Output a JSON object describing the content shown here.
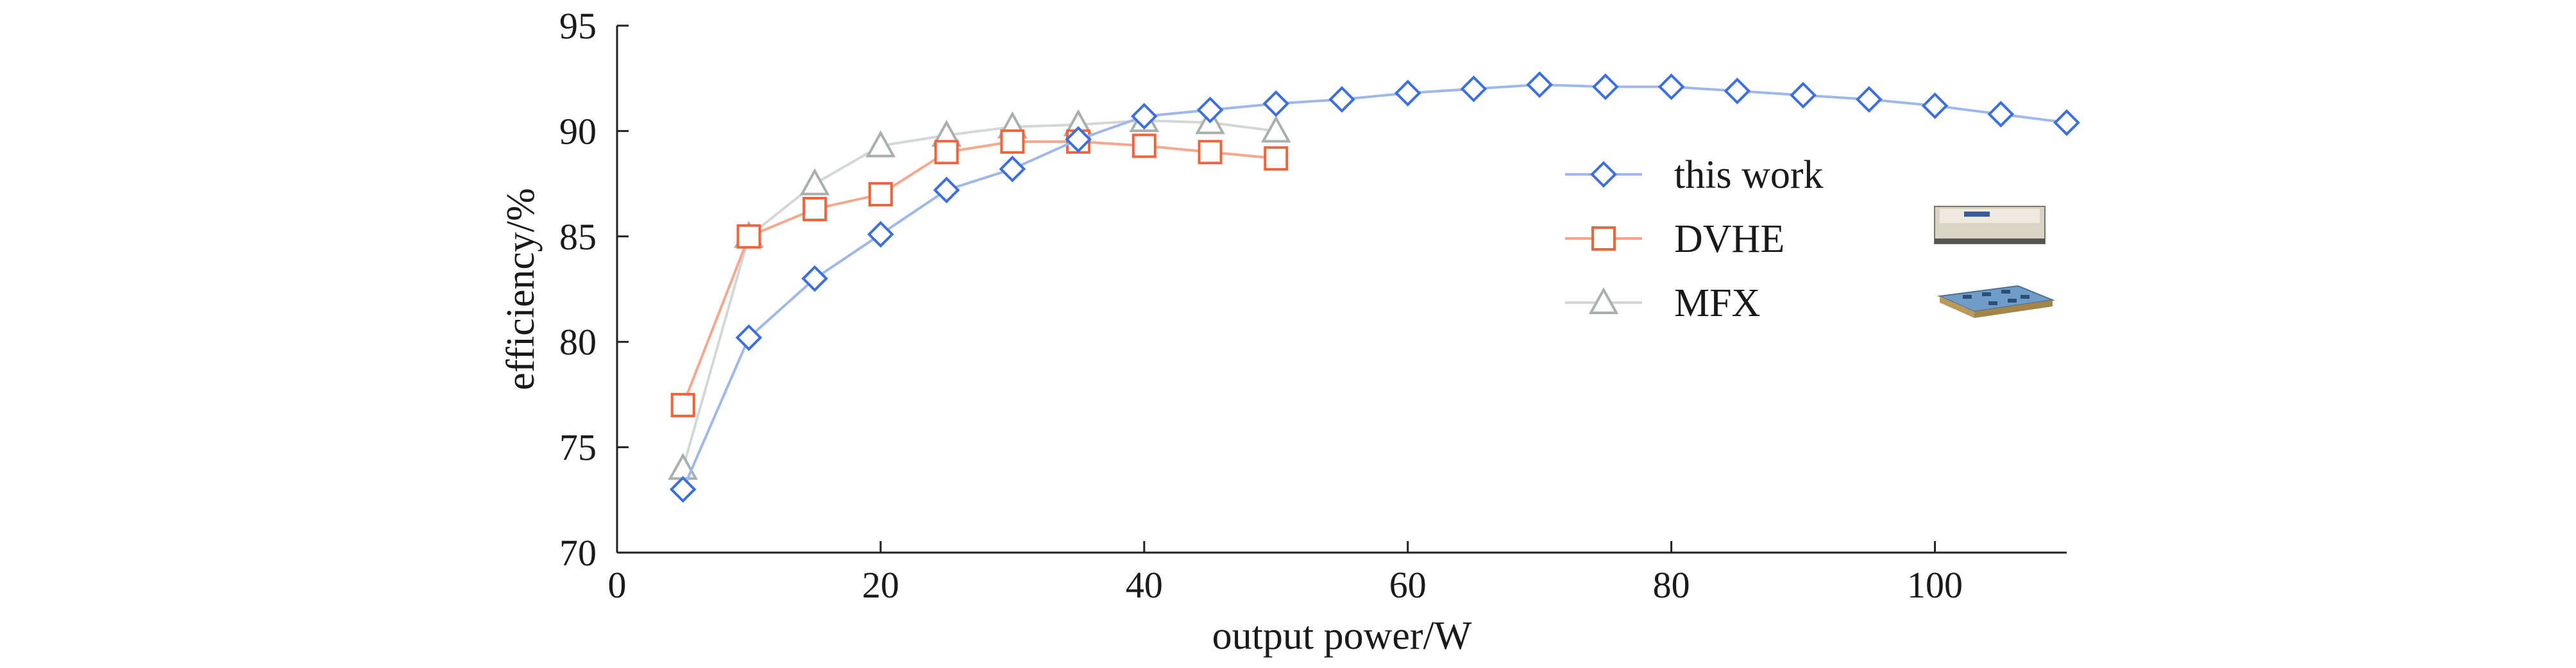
{
  "chart_data": {
    "type": "line",
    "title": "",
    "xlabel": "output power/W",
    "ylabel": "efficiency/%",
    "xlim": [
      0,
      110
    ],
    "ylim": [
      70,
      95
    ],
    "xticks": [
      0,
      20,
      40,
      60,
      80,
      100
    ],
    "yticks": [
      70,
      75,
      80,
      85,
      90,
      95
    ],
    "grid": false,
    "legend_position": "right",
    "series": [
      {
        "name": "this work",
        "marker": "diamond",
        "color": "#3b6fe0",
        "line_color": "#9fb8ec",
        "x": [
          5,
          10,
          15,
          20,
          25,
          30,
          35,
          40,
          45,
          50,
          55,
          60,
          65,
          70,
          75,
          80,
          85,
          90,
          95,
          100,
          105,
          110
        ],
        "y": [
          73.0,
          80.2,
          83.0,
          85.1,
          87.2,
          88.2,
          89.6,
          90.7,
          91.0,
          91.3,
          91.5,
          91.8,
          92.0,
          92.2,
          92.1,
          92.1,
          91.9,
          91.7,
          91.5,
          91.2,
          90.8,
          90.4
        ]
      },
      {
        "name": "DVHE",
        "marker": "square",
        "color": "#f0643c",
        "line_color": "#f6a88f",
        "x": [
          5,
          10,
          15,
          20,
          25,
          30,
          35,
          40,
          45,
          50
        ],
        "y": [
          77.0,
          85.0,
          86.3,
          87.0,
          89.0,
          89.5,
          89.5,
          89.3,
          89.0,
          88.7
        ]
      },
      {
        "name": "MFX",
        "marker": "triangle",
        "color": "#a8b0ad",
        "line_color": "#d3d7d5",
        "x": [
          5,
          10,
          15,
          20,
          25,
          30,
          35,
          40,
          45,
          50
        ],
        "y": [
          74.0,
          85.0,
          87.5,
          89.3,
          89.8,
          90.2,
          90.3,
          90.5,
          90.4,
          90.0
        ]
      }
    ]
  }
}
